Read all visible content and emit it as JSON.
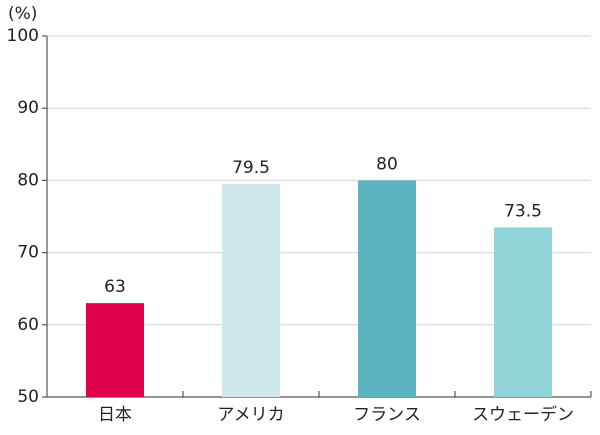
{
  "chart_data": {
    "type": "bar",
    "y_label": "(%)",
    "categories": [
      "日本",
      "アメリカ",
      "フランス",
      "スウェーデン"
    ],
    "values": [
      63,
      79.5,
      80,
      73.5
    ],
    "colors": [
      "#e0004d",
      "#cfe9ec",
      "#5db3bf",
      "#93d3da"
    ],
    "ylim": [
      50,
      100
    ],
    "yticks": [
      50,
      60,
      70,
      80,
      90,
      100
    ],
    "grid": true
  }
}
